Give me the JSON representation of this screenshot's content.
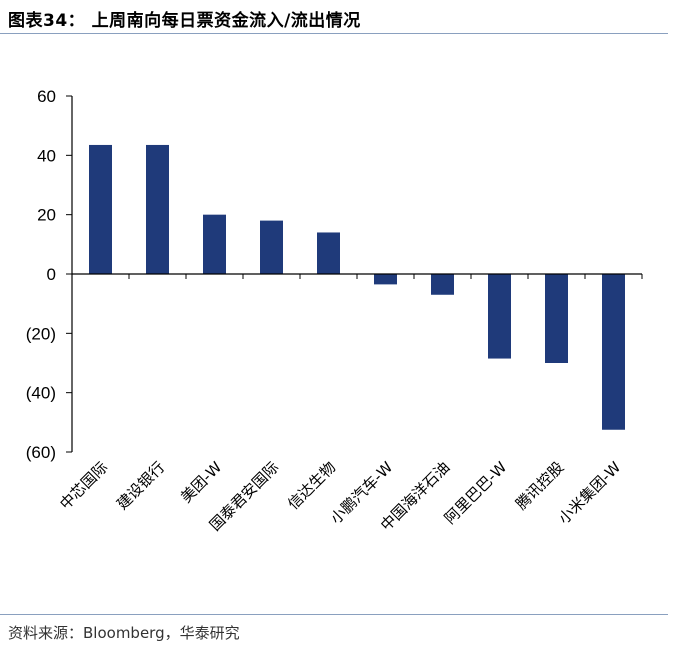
{
  "header": {
    "title": "图表34：  上周南向每日票资金流入/流出情况"
  },
  "footer": {
    "source": "资料来源：Bloomberg，华泰研究"
  },
  "colors": {
    "bar": "#1f3a7a",
    "axis": "#000000",
    "rule": "#8aa0bf"
  },
  "chart_data": {
    "type": "bar",
    "title": "",
    "xlabel": "",
    "ylabel": "",
    "ylim": [
      -60,
      60
    ],
    "yticks": [
      60,
      40,
      20,
      0,
      -20,
      -40,
      -60
    ],
    "ytick_labels": [
      "60",
      "40",
      "20",
      "0",
      "(20)",
      "(40)",
      "(60)"
    ],
    "categories": [
      "中芯国际",
      "建设银行",
      "美团-W",
      "国泰君安国际",
      "信达生物",
      "小鹏汽车-W",
      "中国海洋石油",
      "阿里巴巴-W",
      "腾讯控股",
      "小米集团-W"
    ],
    "values": [
      43.5,
      43.5,
      20,
      18,
      14,
      -3.5,
      -7,
      -28.5,
      -30,
      -52.5
    ]
  }
}
